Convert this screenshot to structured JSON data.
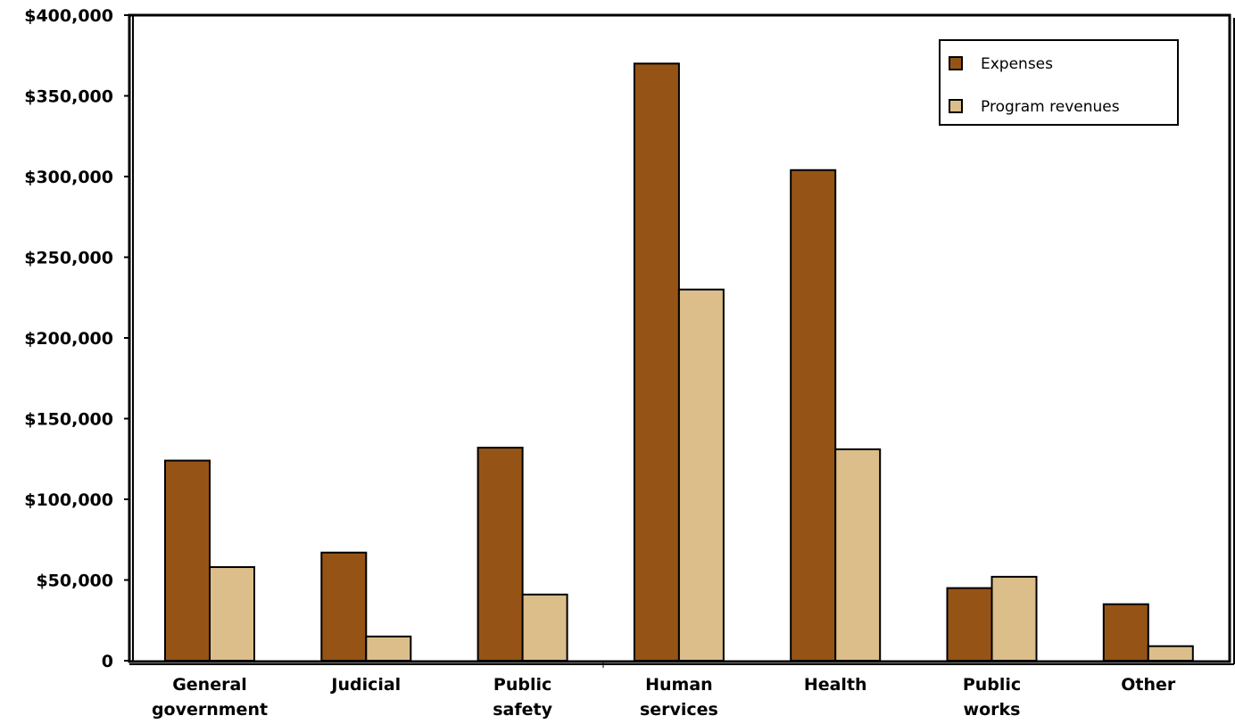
{
  "chart_data": {
    "type": "bar",
    "title": "",
    "xlabel": "",
    "ylabel": "",
    "categories": [
      [
        "General",
        "government"
      ],
      [
        "Judicial"
      ],
      [
        "Public",
        "safety"
      ],
      [
        "Human",
        "services"
      ],
      [
        "Health"
      ],
      [
        "Public",
        "works"
      ],
      [
        "Other"
      ]
    ],
    "series": [
      {
        "name": "Expenses",
        "color": "#955416",
        "values": [
          124000,
          67000,
          132000,
          370000,
          304000,
          45000,
          35000
        ]
      },
      {
        "name": "Program revenues",
        "color": "#DCBE8A",
        "values": [
          58000,
          15000,
          41000,
          230000,
          131000,
          52000,
          9000
        ]
      }
    ],
    "ylim": [
      0,
      400000
    ],
    "yticks": [
      0,
      50000,
      100000,
      150000,
      200000,
      250000,
      300000,
      350000,
      400000
    ],
    "ytick_labels": [
      "0",
      "$50,000",
      "$100,000",
      "$150,000",
      "$200,000",
      "$250,000",
      "$300,000",
      "$350,000",
      "$400,000"
    ],
    "grid": false,
    "legend_position": "top-right"
  }
}
